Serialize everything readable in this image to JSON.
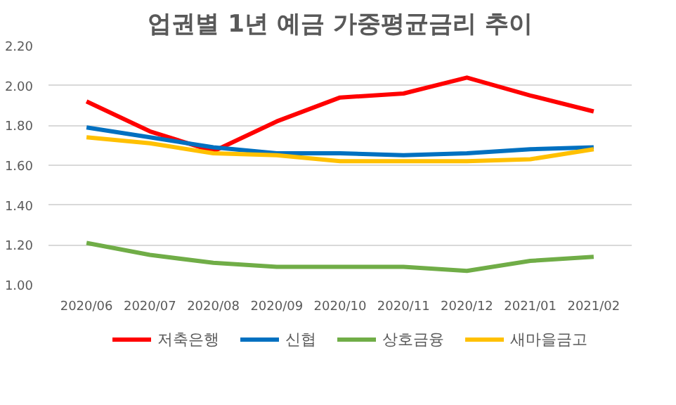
{
  "chart_data": {
    "type": "line",
    "title": "업권별 1년 예금 가중평균금리 추이",
    "categories": [
      "2020/06",
      "2020/07",
      "2020/08",
      "2020/09",
      "2020/10",
      "2020/11",
      "2020/12",
      "2021/01",
      "2021/02"
    ],
    "series": [
      {
        "name": "저축은행",
        "color": "#ff0000",
        "values": [
          1.92,
          1.77,
          1.67,
          1.82,
          1.94,
          1.96,
          2.04,
          1.95,
          1.87
        ]
      },
      {
        "name": "신협",
        "color": "#0070c0",
        "values": [
          1.79,
          1.74,
          1.69,
          1.66,
          1.66,
          1.65,
          1.66,
          1.68,
          1.69
        ]
      },
      {
        "name": "상호금융",
        "color": "#70ad47",
        "values": [
          1.21,
          1.15,
          1.11,
          1.09,
          1.09,
          1.09,
          1.07,
          1.12,
          1.14
        ]
      },
      {
        "name": "새마을금고",
        "color": "#ffc000",
        "values": [
          1.74,
          1.71,
          1.66,
          1.65,
          1.62,
          1.62,
          1.62,
          1.63,
          1.68
        ]
      }
    ],
    "ylim": [
      1.0,
      2.2
    ],
    "yticks": [
      {
        "value": 1.0,
        "label": "1.00"
      },
      {
        "value": 1.2,
        "label": "1.20"
      },
      {
        "value": 1.4,
        "label": "1.40"
      },
      {
        "value": 1.6,
        "label": "1.60"
      },
      {
        "value": 1.8,
        "label": "1.80"
      },
      {
        "value": 2.0,
        "label": "2.00"
      },
      {
        "value": 2.2,
        "label": "2.20"
      }
    ],
    "grid": "y",
    "legend": "bottom",
    "marker": "none",
    "line_style": "solid"
  }
}
